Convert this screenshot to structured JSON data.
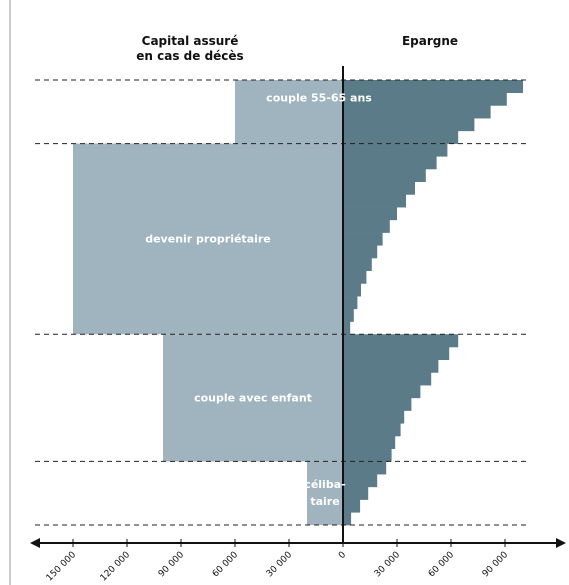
{
  "chart_data": {
    "type": "pyramid",
    "left_title": "Capital assuré\nen cas de décès",
    "right_title": "Epargne",
    "categories": [
      "couple 55-65 ans",
      "devenir propriétaire",
      "couple avec enfant",
      "céliba-\ntaire"
    ],
    "values": [
      60000,
      150000,
      100000,
      20000
    ],
    "epargne": [
      [
        100000,
        91000,
        82000,
        73000,
        64000
      ],
      [
        58000,
        52000,
        46000,
        40000,
        35000,
        30000,
        26000,
        22000,
        19000,
        16000,
        13000,
        10000,
        8000,
        6000,
        4000
      ],
      [
        64000,
        59000,
        53000,
        49000,
        43000,
        38000,
        34000,
        32000,
        29000,
        27000
      ],
      [
        24000,
        19000,
        14000,
        9500,
        4500
      ]
    ],
    "capital_color": "#9fb4be",
    "epargne_color": "#5b7b89",
    "xlim": [
      -175000,
      125000
    ],
    "xticks": [
      {
        "value": -150000,
        "label": "150 000"
      },
      {
        "value": -120000,
        "label": "120 000"
      },
      {
        "value": -90000,
        "label": "90 000"
      },
      {
        "value": -60000,
        "label": "60 000"
      },
      {
        "value": -30000,
        "label": "30 000"
      },
      0,
      {
        "value": 30000,
        "label": "30 000"
      },
      {
        "value": 60000,
        "label": "60 000"
      },
      {
        "value": 90000,
        "label": "90 000"
      }
    ]
  }
}
